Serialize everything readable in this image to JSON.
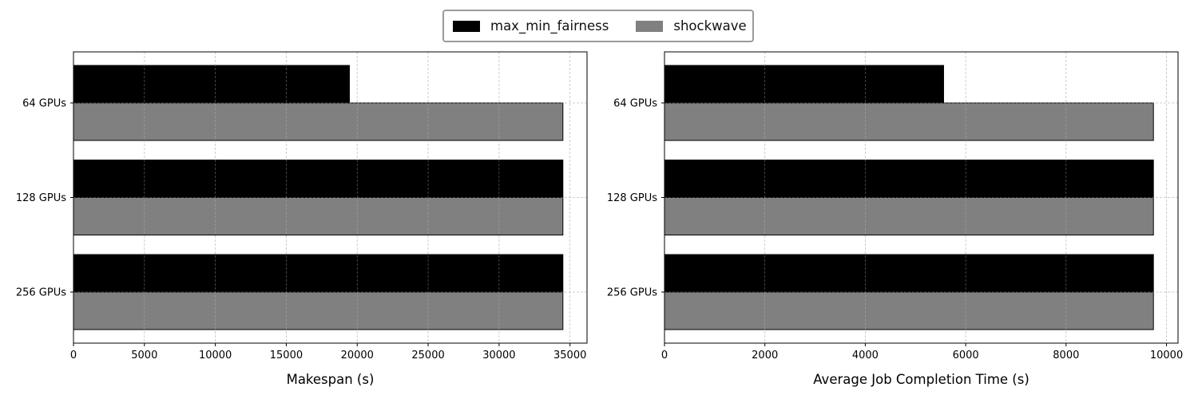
{
  "legend": {
    "items": [
      {
        "label": "max_min_fairness",
        "color": "#000000"
      },
      {
        "label": "shockwave",
        "color": "#808080"
      }
    ]
  },
  "chart_data": [
    {
      "type": "bar",
      "orientation": "horizontal",
      "categories": [
        "64 GPUs",
        "128 GPUs",
        "256 GPUs"
      ],
      "series": [
        {
          "name": "max_min_fairness",
          "color": "#000000",
          "values": [
            19450,
            34500,
            34500
          ]
        },
        {
          "name": "shockwave",
          "color": "#808080",
          "values": [
            34500,
            34500,
            34500
          ]
        }
      ],
      "xlabel": "Makespan (s)",
      "ylabel": "",
      "xlim": [
        0,
        36200
      ],
      "xticks": [
        0,
        5000,
        10000,
        15000,
        20000,
        25000,
        30000,
        35000
      ],
      "grid": true
    },
    {
      "type": "bar",
      "orientation": "horizontal",
      "categories": [
        "64 GPUs",
        "128 GPUs",
        "256 GPUs"
      ],
      "series": [
        {
          "name": "max_min_fairness",
          "color": "#000000",
          "values": [
            5560,
            9740,
            9740
          ]
        },
        {
          "name": "shockwave",
          "color": "#808080",
          "values": [
            9740,
            9740,
            9740
          ]
        }
      ],
      "xlabel": "Average Job Completion Time (s)",
      "ylabel": "",
      "xlim": [
        0,
        10230
      ],
      "xticks": [
        0,
        2000,
        4000,
        6000,
        8000,
        10000
      ],
      "grid": true
    }
  ]
}
